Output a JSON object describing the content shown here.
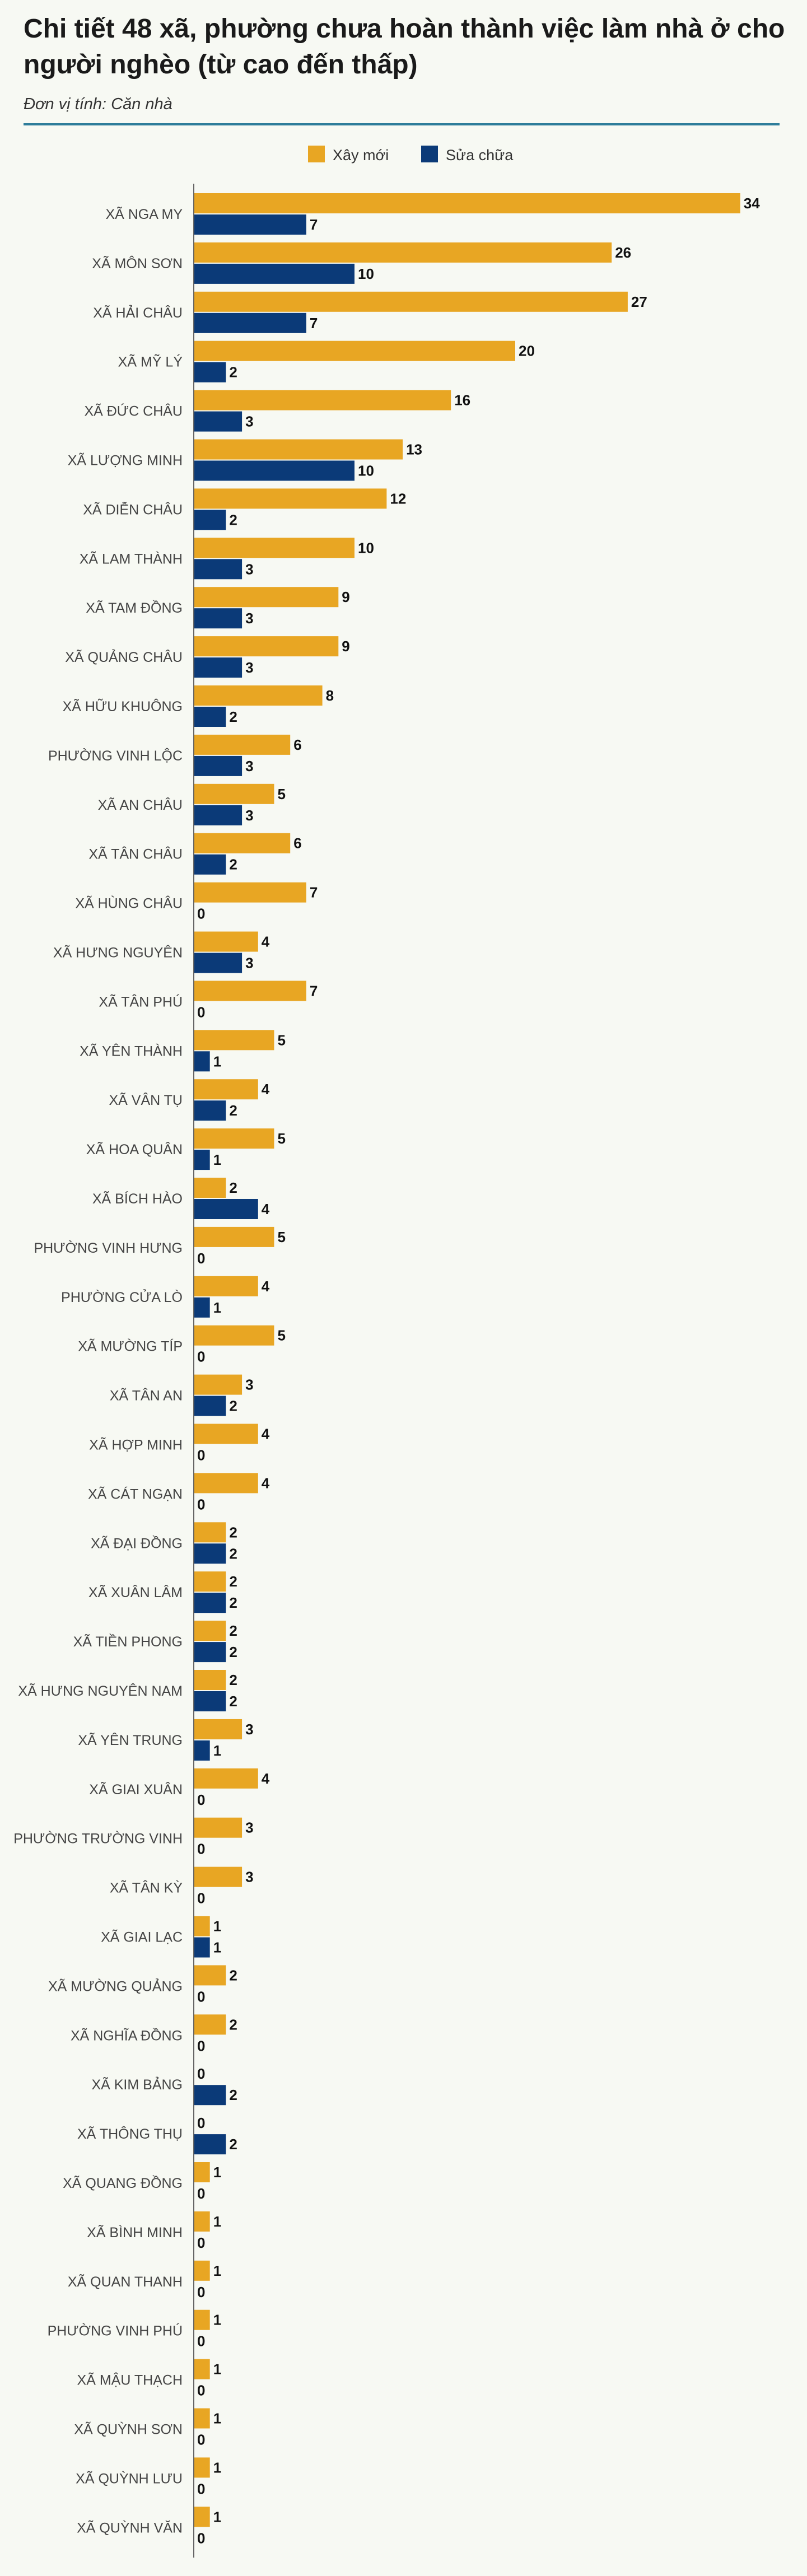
{
  "title": "Chi tiết 48 xã, phường chưa hoàn thành việc làm nhà ở cho người nghèo (từ cao đến thấp)",
  "unit": "Đơn vị tính: Căn nhà",
  "colors": {
    "new": "#e8a623",
    "repair": "#0b3a78",
    "axis": "#666666"
  },
  "chart_data": {
    "type": "bar",
    "orientation": "horizontal",
    "title": "Chi tiết 48 xã, phường chưa hoàn thành việc làm nhà ở cho người nghèo (từ cao đến thấp)",
    "subtitle": "Đơn vị tính: Căn nhà",
    "legend_position": "top-center",
    "grid": false,
    "xlim": [
      0,
      34
    ],
    "categories": [
      "XÃ NGA MY",
      "XÃ MÔN SƠN",
      "XÃ HẢI CHÂU",
      "XÃ MỸ LÝ",
      "XÃ ĐỨC CHÂU",
      "XÃ LƯỢNG MINH",
      "XÃ DIỄN CHÂU",
      "XÃ LAM THÀNH",
      "XÃ TAM ĐỒNG",
      "XÃ QUẢNG CHÂU",
      "XÃ HỮU KHUÔNG",
      "PHƯỜNG VINH LỘC",
      "XÃ AN CHÂU",
      "XÃ TÂN CHÂU",
      "XÃ HÙNG CHÂU",
      "XÃ HƯNG NGUYÊN",
      "XÃ TÂN PHÚ",
      "XÃ YÊN THÀNH",
      "XÃ VÂN TỤ",
      "XÃ HOA QUÂN",
      "XÃ BÍCH HÀO",
      "PHƯỜNG VINH HƯNG",
      "PHƯỜNG CỬA LÒ",
      "XÃ MƯỜNG TÍP",
      "XÃ TÂN AN",
      "XÃ HỢP MINH",
      "XÃ CÁT NGẠN",
      "XÃ ĐẠI ĐỒNG",
      "XÃ XUÂN LÂM",
      "XÃ TIỀN PHONG",
      "XÃ HƯNG NGUYÊN NAM",
      "XÃ YÊN TRUNG",
      "XÃ GIAI XUÂN",
      "PHƯỜNG TRƯỜNG VINH",
      "XÃ TÂN KỲ",
      "XÃ GIAI LẠC",
      "XÃ MƯỜNG QUẢNG",
      "XÃ NGHĨA ĐỒNG",
      "XÃ KIM BẢNG",
      "XÃ THÔNG THỤ",
      "XÃ QUANG ĐỒNG",
      "XÃ BÌNH MINH",
      "XÃ QUAN THANH",
      "PHƯỜNG VINH PHÚ",
      "XÃ MẬU THẠCH",
      "XÃ QUỲNH SƠN",
      "XÃ QUỲNH LƯU",
      "XÃ QUỲNH VĂN"
    ],
    "series": [
      {
        "name": "Xây mới",
        "values": [
          34,
          26,
          27,
          20,
          16,
          13,
          12,
          10,
          9,
          9,
          8,
          6,
          5,
          6,
          7,
          4,
          7,
          5,
          4,
          5,
          2,
          5,
          4,
          5,
          3,
          4,
          4,
          2,
          2,
          2,
          2,
          3,
          4,
          3,
          3,
          1,
          2,
          2,
          0,
          0,
          1,
          1,
          1,
          1,
          1,
          1,
          1,
          1
        ]
      },
      {
        "name": "Sửa chữa",
        "values": [
          7,
          10,
          7,
          2,
          3,
          10,
          2,
          3,
          3,
          3,
          2,
          3,
          3,
          2,
          0,
          3,
          0,
          1,
          2,
          1,
          4,
          0,
          1,
          0,
          2,
          0,
          0,
          2,
          2,
          2,
          2,
          1,
          0,
          0,
          0,
          1,
          0,
          0,
          2,
          2,
          0,
          0,
          0,
          0,
          0,
          0,
          0,
          0
        ]
      }
    ]
  }
}
